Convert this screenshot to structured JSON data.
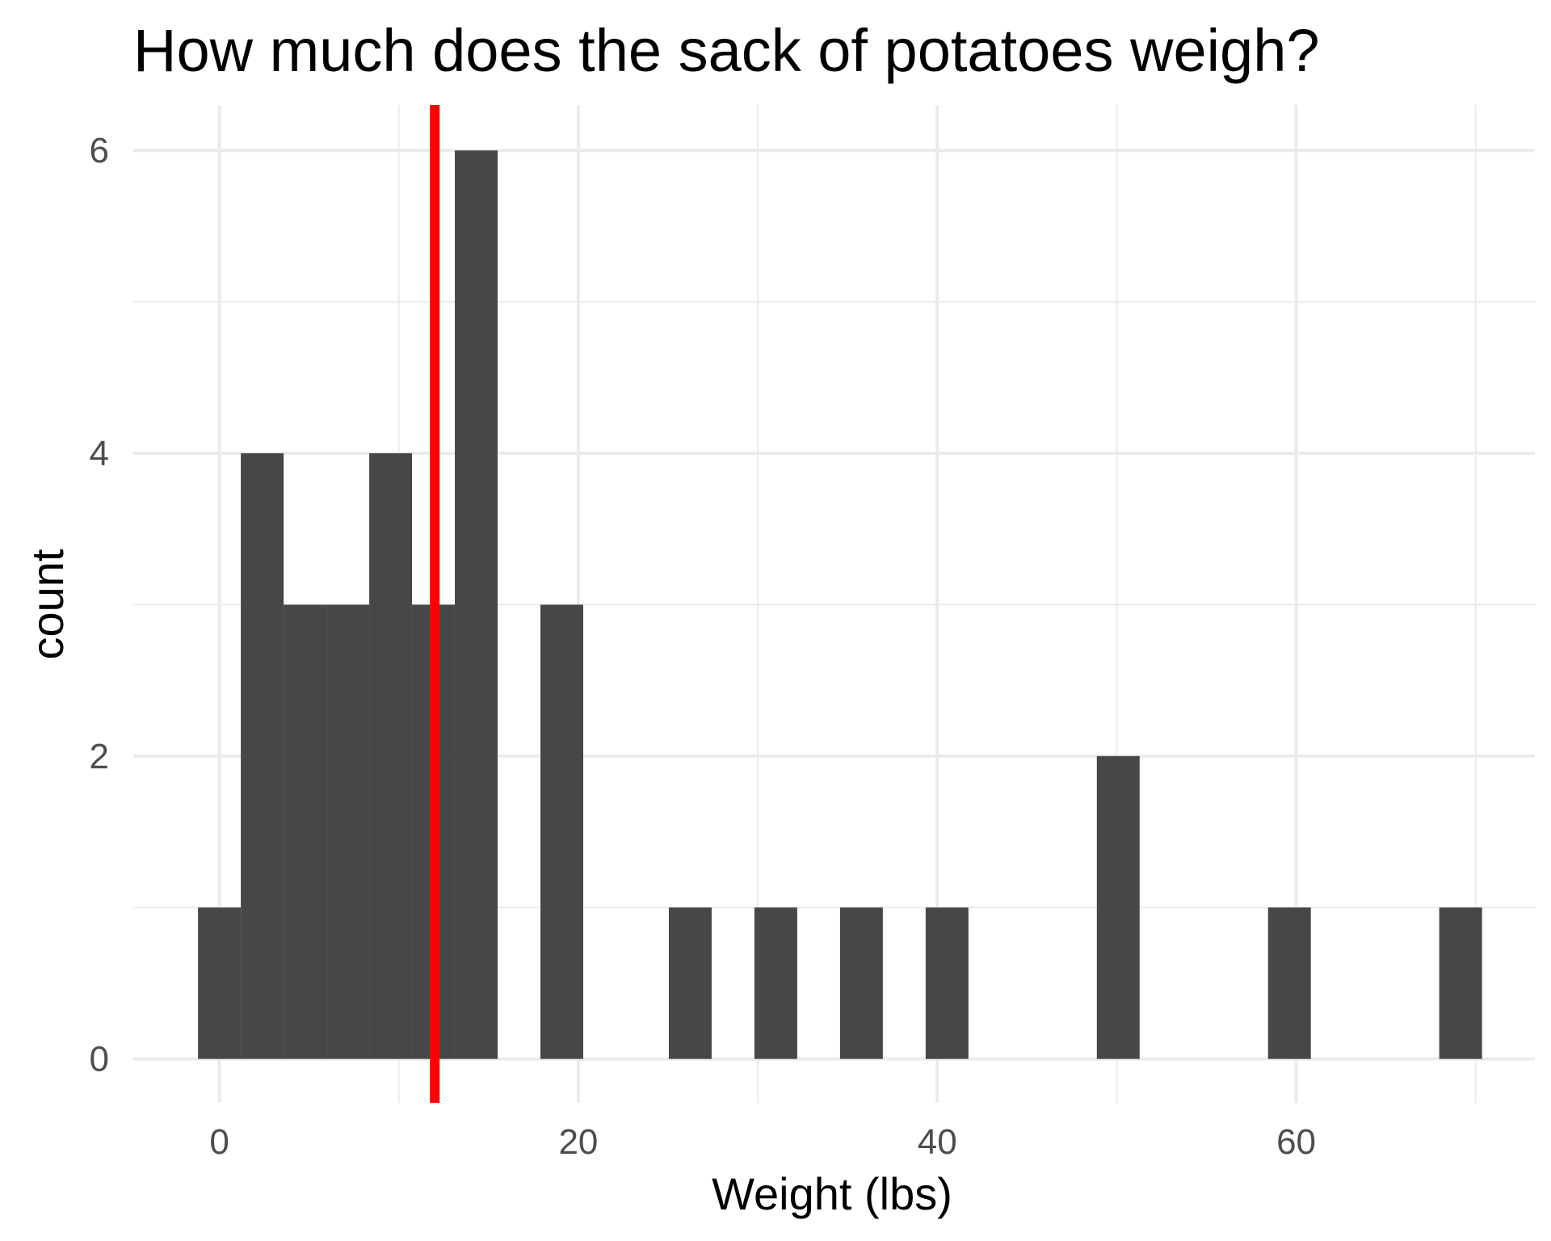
{
  "chart_data": {
    "type": "bar",
    "title": "How much does the sack of potatoes weigh?",
    "xlabel": "Weight (lbs)",
    "ylabel": "count",
    "xlim": [
      -4.8,
      73.3
    ],
    "ylim": [
      -0.29,
      6.3
    ],
    "x_ticks": [
      0,
      20,
      40,
      60
    ],
    "y_ticks": [
      0,
      2,
      4,
      6
    ],
    "grid": true,
    "bin_width": 2.385,
    "bins": [
      {
        "x": 0.0,
        "count": 1
      },
      {
        "x": 2.385,
        "count": 4
      },
      {
        "x": 4.77,
        "count": 3
      },
      {
        "x": 7.155,
        "count": 3
      },
      {
        "x": 9.54,
        "count": 4
      },
      {
        "x": 11.925,
        "count": 3
      },
      {
        "x": 14.31,
        "count": 6
      },
      {
        "x": 19.08,
        "count": 3
      },
      {
        "x": 26.235,
        "count": 1
      },
      {
        "x": 31.005,
        "count": 1
      },
      {
        "x": 35.775,
        "count": 1
      },
      {
        "x": 40.545,
        "count": 1
      },
      {
        "x": 50.085,
        "count": 2
      },
      {
        "x": 59.625,
        "count": 1
      },
      {
        "x": 69.165,
        "count": 1
      }
    ],
    "reference_line": {
      "x": 12.0,
      "color": "#ff0000"
    },
    "colors": {
      "bar": "#474747",
      "grid": "#ebebeb",
      "reference_line": "#ff0000"
    }
  }
}
